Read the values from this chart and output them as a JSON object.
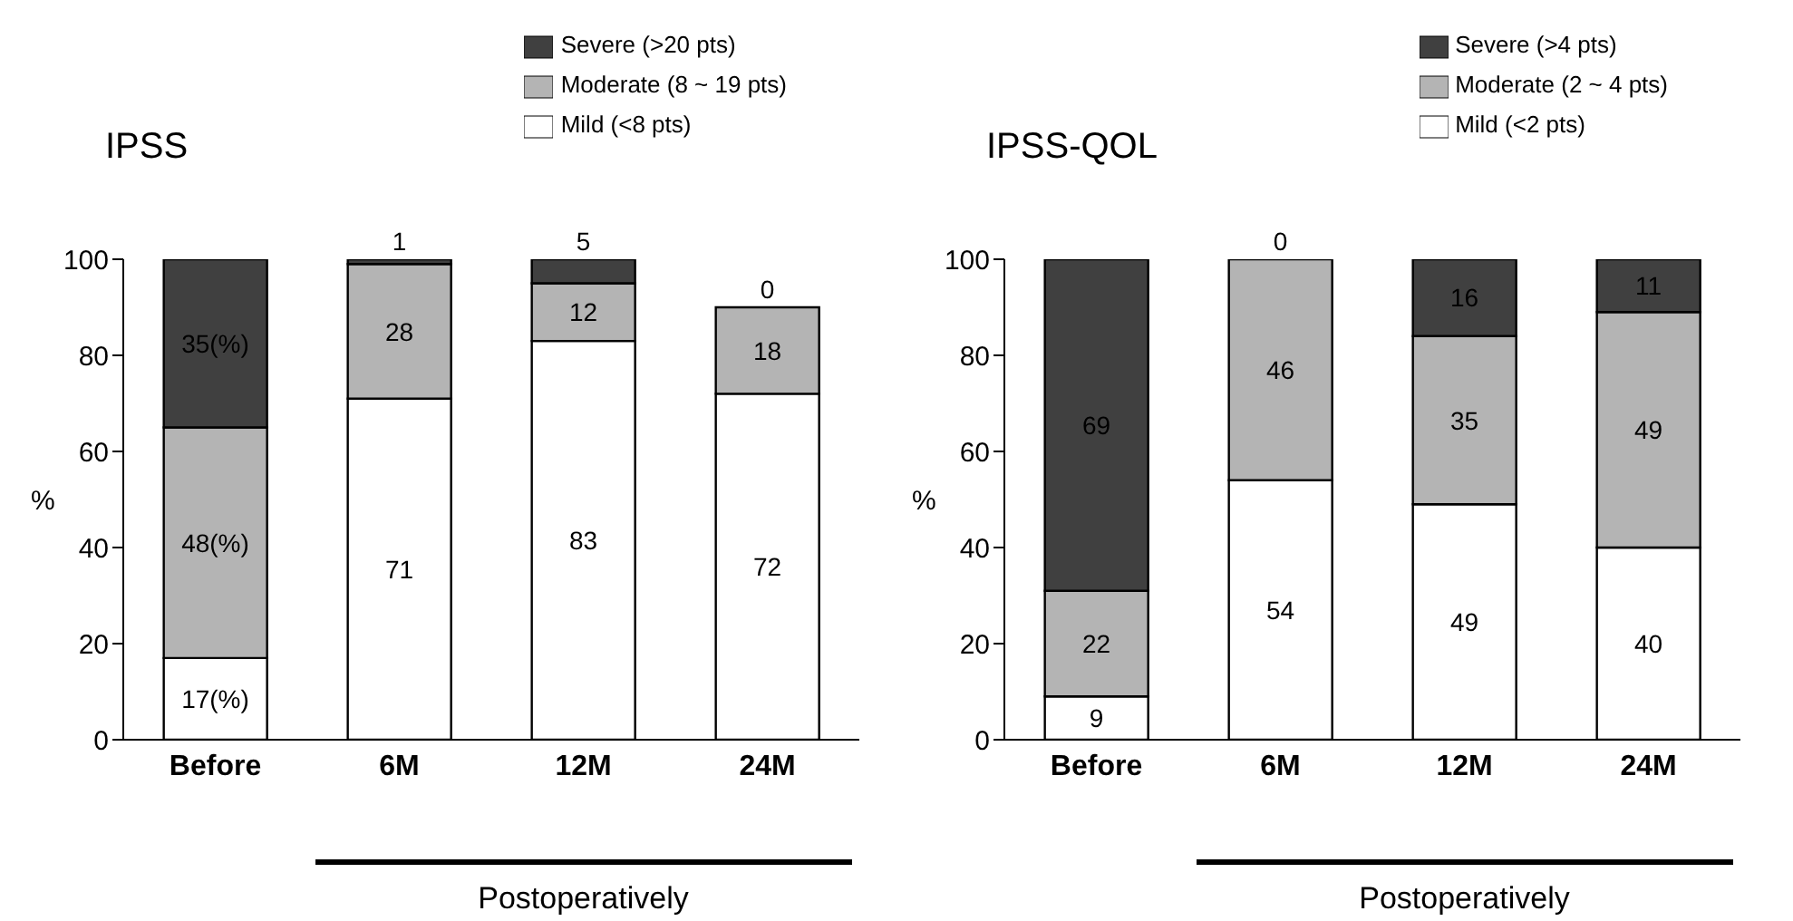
{
  "chart_data": [
    {
      "type": "bar",
      "title": "IPSS",
      "ylabel": "%",
      "categories": [
        "Before",
        "6M",
        "12M",
        "24M"
      ],
      "stacked": true,
      "ylim": [
        0,
        100
      ],
      "yticks": [
        0,
        20,
        40,
        60,
        80,
        100
      ],
      "grid": false,
      "legend": "top right",
      "annotations": [
        "Postoperatively"
      ],
      "series": [
        {
          "name": "Mild (<8 pts)",
          "color": "#ffffff",
          "values": [
            17,
            71,
            83,
            72
          ],
          "value_labels": [
            "17(%)",
            "71",
            "83",
            "72"
          ]
        },
        {
          "name": "Moderate (8 ~ 19 pts)",
          "color": "#b4b4b4",
          "values": [
            48,
            28,
            12,
            18
          ],
          "value_labels": [
            "48(%)",
            "28",
            "12",
            "18"
          ]
        },
        {
          "name": "Severe (>20 pts)",
          "color": "#404040",
          "values": [
            35,
            1,
            5,
            0
          ],
          "value_labels": [
            "35(%)",
            "1",
            "5",
            "0"
          ]
        }
      ]
    },
    {
      "type": "bar",
      "title": "IPSS-QOL",
      "ylabel": "%",
      "categories": [
        "Before",
        "6M",
        "12M",
        "24M"
      ],
      "stacked": true,
      "ylim": [
        0,
        100
      ],
      "yticks": [
        0,
        20,
        40,
        60,
        80,
        100
      ],
      "grid": false,
      "legend": "top right",
      "annotations": [
        "Postoperatively"
      ],
      "series": [
        {
          "name": "Mild (<2 pts)",
          "color": "#ffffff",
          "values": [
            9,
            54,
            49,
            40
          ],
          "value_labels": [
            "9",
            "54",
            "49",
            "40"
          ]
        },
        {
          "name": "Moderate (2 ~ 4 pts)",
          "color": "#b4b4b4",
          "values": [
            22,
            46,
            35,
            49
          ],
          "value_labels": [
            "22",
            "46",
            "35",
            "49"
          ]
        },
        {
          "name": "Severe (>4 pts)",
          "color": "#404040",
          "values": [
            69,
            0,
            16,
            11
          ],
          "value_labels": [
            "69",
            "0",
            "16",
            "11"
          ]
        }
      ]
    }
  ]
}
